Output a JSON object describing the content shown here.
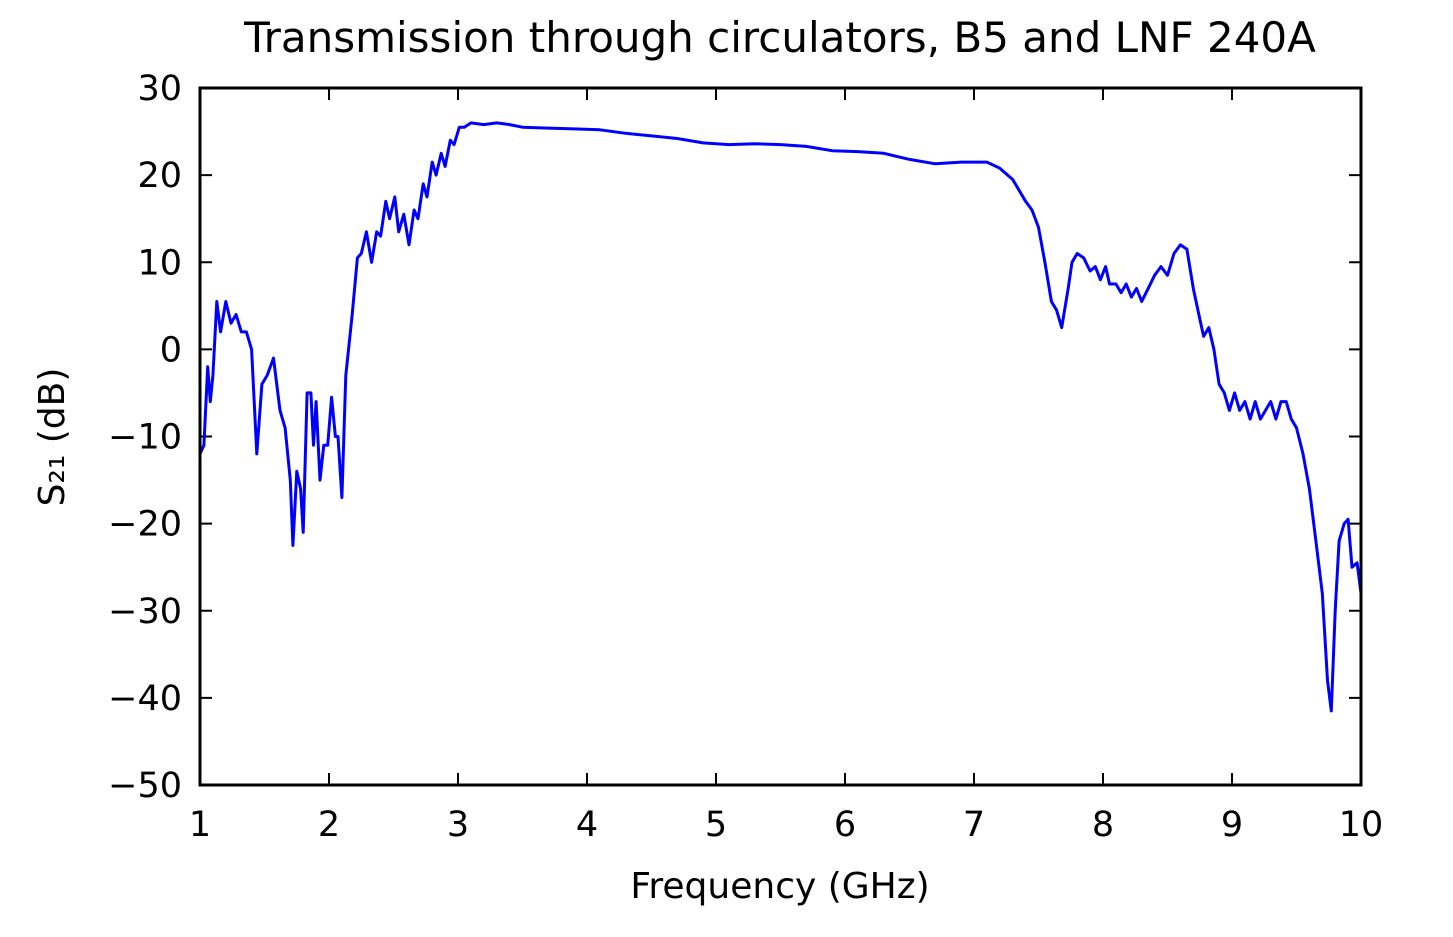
{
  "chart_data": {
    "type": "line",
    "title": "Transmission through circulators, B5 and LNF 240A",
    "xlabel": "Frequency (GHz)",
    "ylabel": "S₂₁ (dB)",
    "xlim": [
      1,
      10
    ],
    "xticks": [
      1,
      2,
      3,
      4,
      5,
      6,
      7,
      8,
      9,
      10
    ],
    "ylim": [
      -50,
      30
    ],
    "yticks": [
      {
        "value": -50,
        "label": "−50"
      },
      {
        "value": -40,
        "label": "−40"
      },
      {
        "value": -30,
        "label": "−30"
      },
      {
        "value": -20,
        "label": "−20"
      },
      {
        "value": -10,
        "label": "−10"
      },
      0,
      10,
      20,
      30
    ],
    "grid": false,
    "series": [
      {
        "color": "#0000ff",
        "x": [
          1.0,
          1.03,
          1.06,
          1.08,
          1.1,
          1.13,
          1.16,
          1.2,
          1.24,
          1.28,
          1.32,
          1.36,
          1.4,
          1.44,
          1.48,
          1.52,
          1.57,
          1.62,
          1.66,
          1.7,
          1.72,
          1.75,
          1.78,
          1.8,
          1.83,
          1.86,
          1.88,
          1.9,
          1.93,
          1.96,
          1.99,
          2.02,
          2.05,
          2.07,
          2.1,
          2.13,
          2.18,
          2.22,
          2.25,
          2.29,
          2.33,
          2.37,
          2.4,
          2.44,
          2.47,
          2.51,
          2.54,
          2.58,
          2.62,
          2.66,
          2.69,
          2.73,
          2.76,
          2.8,
          2.83,
          2.87,
          2.9,
          2.94,
          2.97,
          3.01,
          3.05,
          3.1,
          3.2,
          3.3,
          3.4,
          3.5,
          3.7,
          3.9,
          4.1,
          4.3,
          4.5,
          4.7,
          4.9,
          5.1,
          5.3,
          5.5,
          5.7,
          5.9,
          6.1,
          6.3,
          6.5,
          6.7,
          6.9,
          7.1,
          7.2,
          7.3,
          7.4,
          7.45,
          7.5,
          7.55,
          7.6,
          7.64,
          7.68,
          7.73,
          7.76,
          7.8,
          7.85,
          7.9,
          7.94,
          7.98,
          8.02,
          8.05,
          8.1,
          8.14,
          8.18,
          8.22,
          8.26,
          8.3,
          8.35,
          8.4,
          8.45,
          8.5,
          8.55,
          8.6,
          8.65,
          8.7,
          8.75,
          8.78,
          8.82,
          8.86,
          8.9,
          8.94,
          8.98,
          9.02,
          9.06,
          9.1,
          9.14,
          9.18,
          9.22,
          9.26,
          9.3,
          9.34,
          9.38,
          9.42,
          9.46,
          9.5,
          9.55,
          9.6,
          9.65,
          9.7,
          9.74,
          9.77,
          9.8,
          9.83,
          9.87,
          9.9,
          9.93,
          9.97,
          10.0
        ],
        "values": [
          -12,
          -11,
          -2,
          -6,
          -3,
          5.5,
          2,
          5.5,
          3,
          4,
          2,
          2,
          0,
          -12,
          -4,
          -3,
          -1,
          -7,
          -9,
          -15,
          -22.5,
          -14,
          -16,
          -21,
          -5,
          -5,
          -11,
          -6,
          -15,
          -11,
          -11,
          -5.5,
          -10,
          -10,
          -17,
          -3,
          4,
          10.5,
          11,
          13.5,
          10,
          13.5,
          13,
          17,
          15,
          17.5,
          13.5,
          15.5,
          12,
          16,
          15,
          19,
          17.5,
          21.5,
          20,
          22.5,
          21,
          24,
          23.5,
          25.5,
          25.5,
          26,
          25.8,
          26,
          25.8,
          25.5,
          25.4,
          25.3,
          25.2,
          24.8,
          24.5,
          24.2,
          23.7,
          23.5,
          23.6,
          23.5,
          23.3,
          22.8,
          22.7,
          22.5,
          21.8,
          21.3,
          21.5,
          21.5,
          20.8,
          19.5,
          17,
          16,
          14,
          10,
          5.5,
          4.5,
          2.5,
          7,
          10,
          11,
          10.5,
          9,
          9.5,
          8,
          9.5,
          7.5,
          7.5,
          6.5,
          7.5,
          6,
          7,
          5.5,
          7,
          8.5,
          9.5,
          8.5,
          11,
          12,
          11.5,
          7,
          3.5,
          1.5,
          2.5,
          0,
          -4,
          -5,
          -7,
          -5,
          -7,
          -6,
          -8,
          -6,
          -8,
          -7,
          -6,
          -8,
          -6,
          -6,
          -8,
          -9,
          -12,
          -16,
          -22,
          -28,
          -38,
          -41.5,
          -30,
          -22,
          -20,
          -19.5,
          -25,
          -24.5,
          -28
        ]
      }
    ]
  }
}
